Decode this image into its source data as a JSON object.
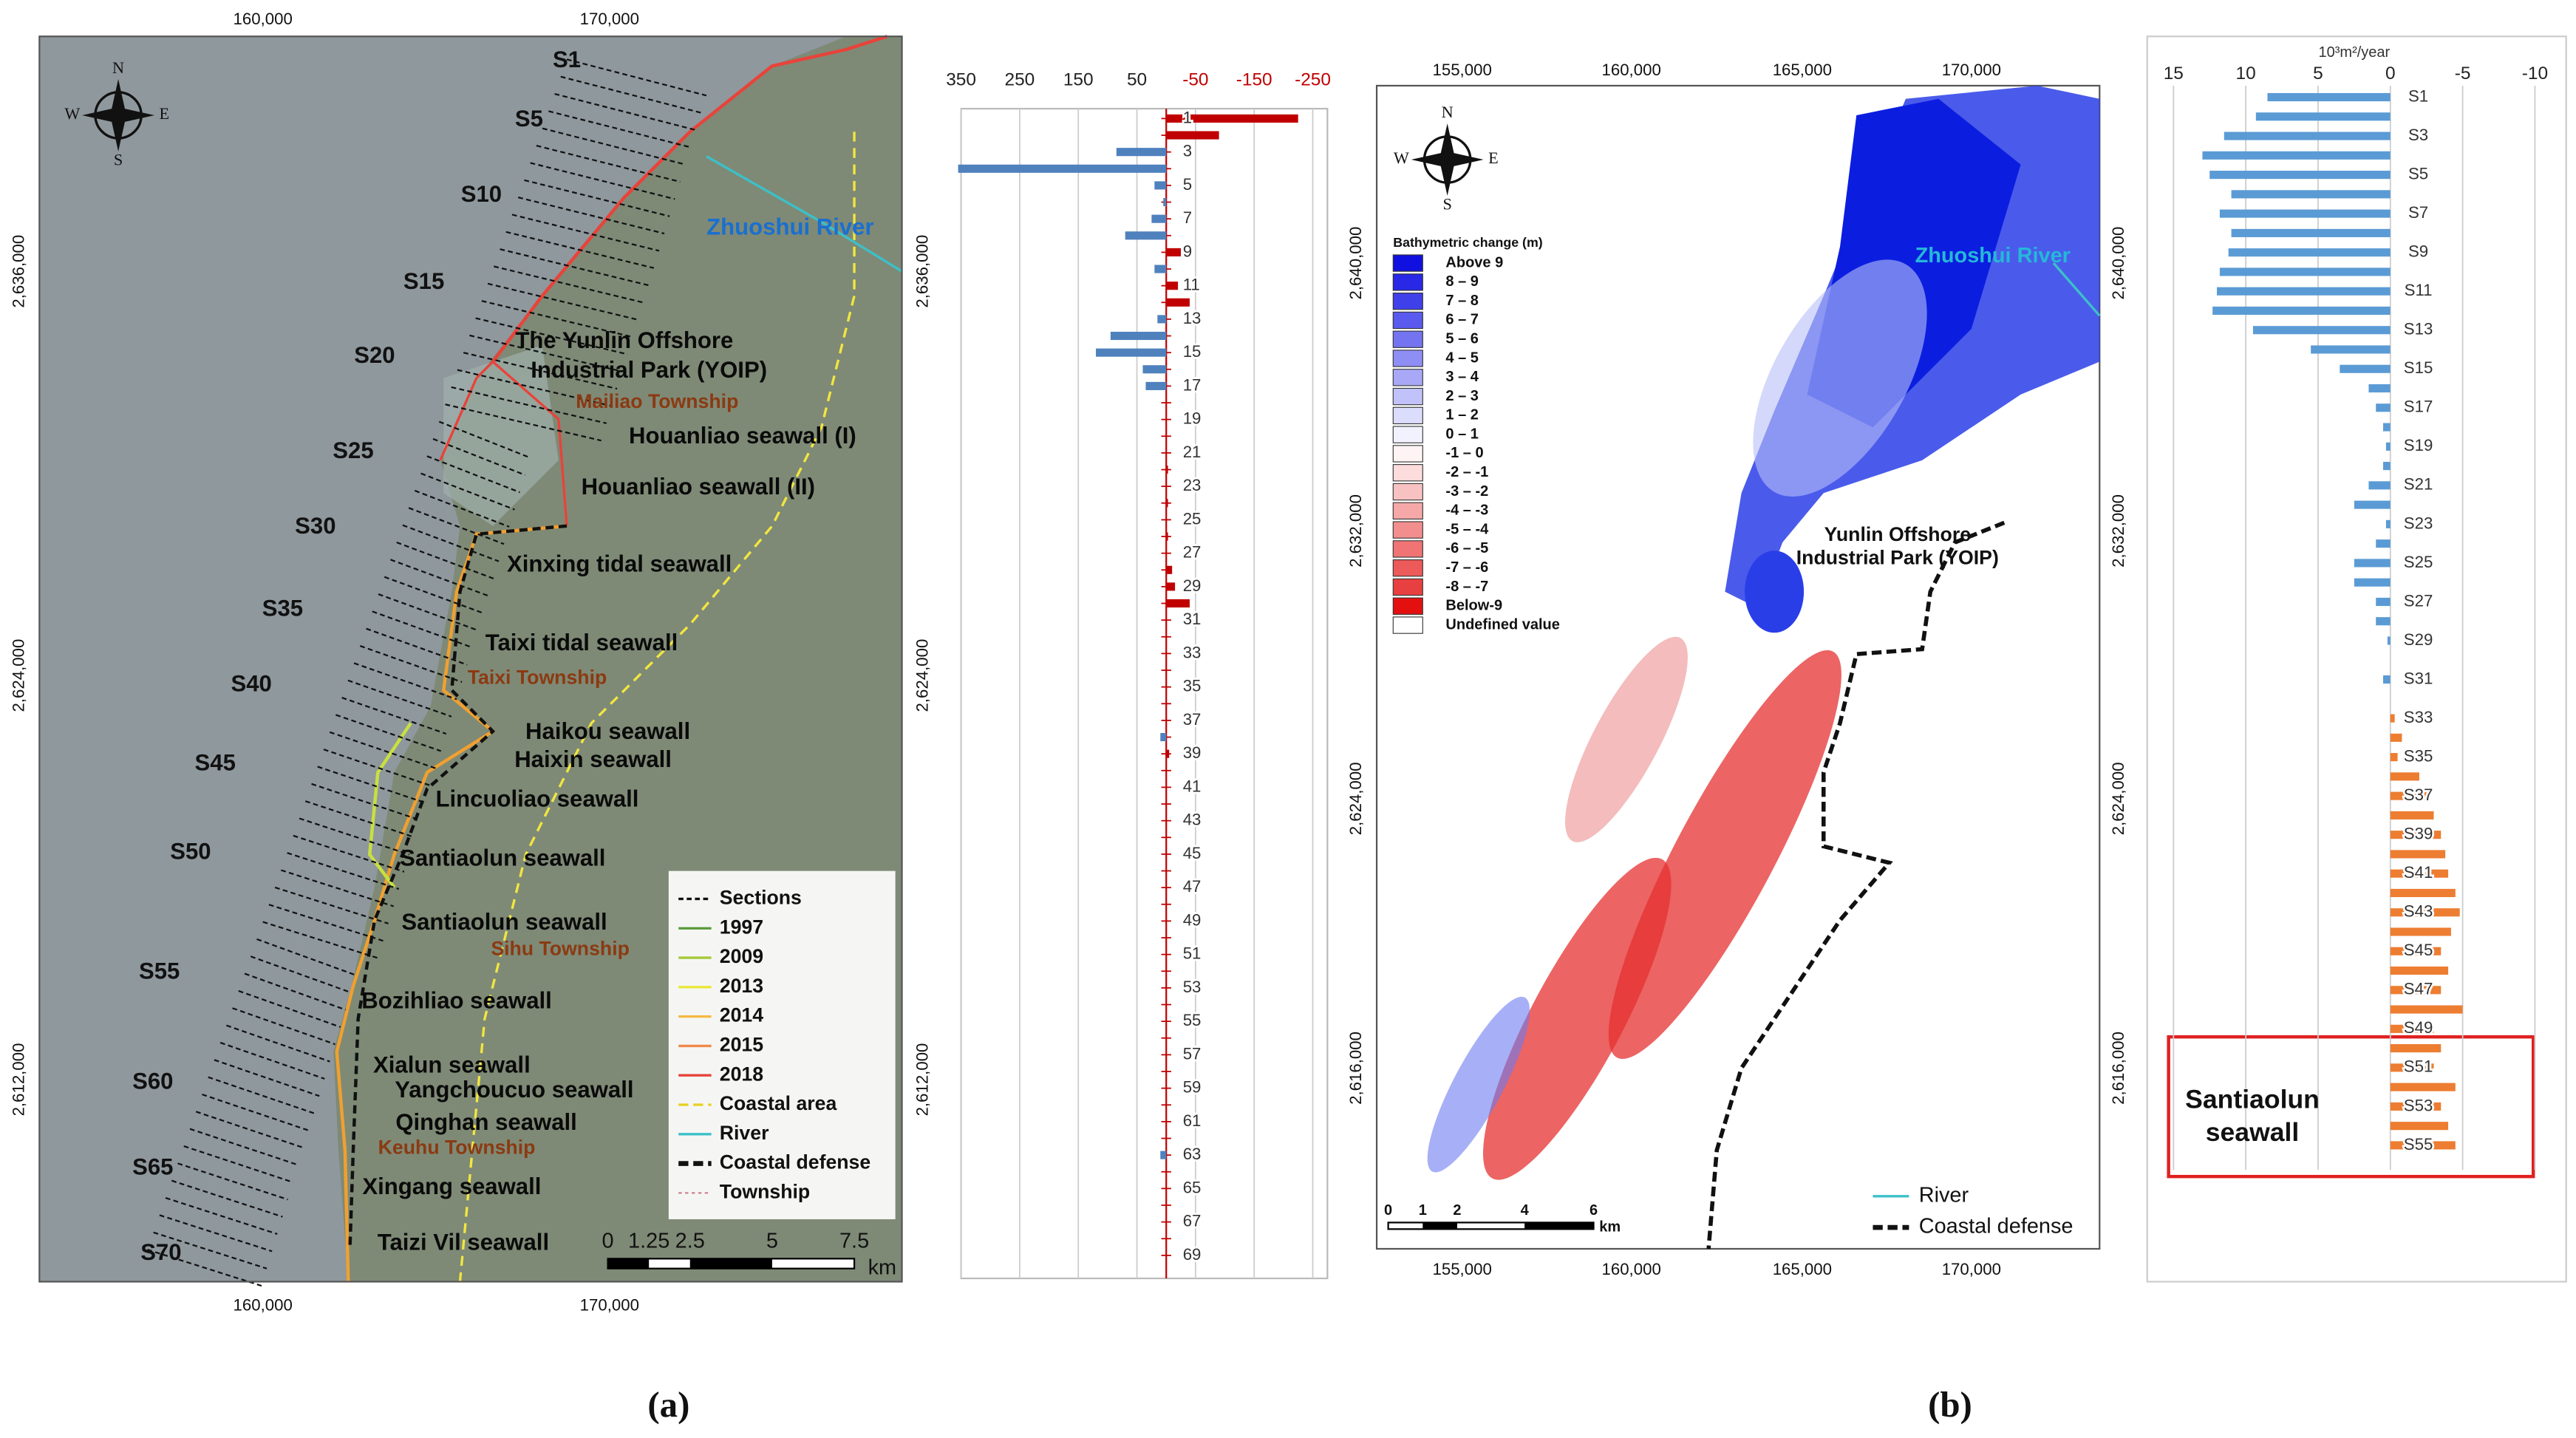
{
  "panel_a_map": {
    "sections": [
      "S1",
      "S5",
      "S10",
      "S15",
      "S20",
      "S25",
      "S30",
      "S35",
      "S40",
      "S45",
      "S50",
      "S55",
      "S60",
      "S65",
      "S70"
    ],
    "places": [
      "The Yunlin Offshore",
      "Industrial Park (YOIP)",
      "Houanliao seawall (I)",
      "Houanliao seawall (II)",
      "Xinxing tidal seawall",
      "Taixi tidal seawall",
      "Haikou seawall",
      "Haixin seawall",
      "Lincuoliao seawall",
      "Santiaolun seawall",
      "Santiaolun seawall",
      "Bozihliao seawall",
      "Xialun seawall",
      "Yangchoucuo seawall",
      "Qinghan seawall",
      "Xingang seawall",
      "Taizi Vil seawall"
    ],
    "townships": [
      "Mailiao Township",
      "Taixi Township",
      "Sihu Township",
      "Keuhu Township"
    ],
    "river": "Zhuoshui River",
    "legend": [
      "Sections",
      "1997",
      "2009",
      "2013",
      "2014",
      "2015",
      "2018",
      "Coastal area",
      "River",
      "Coastal defense",
      "Township"
    ],
    "scale": [
      "0",
      "1.25",
      "2.5",
      "5",
      "7.5",
      "km"
    ],
    "x_ticks": [
      "160,000",
      "170,000"
    ],
    "y_ticks": [
      "2,636,000",
      "2,624,000",
      "2,612,000"
    ],
    "compass": [
      "N",
      "E",
      "S",
      "W"
    ]
  },
  "panel_b_map": {
    "legend_title": "Bathymetric change (m)",
    "legend": [
      "Above 9",
      "8 – 9",
      "7 – 8",
      "6 – 7",
      "5 – 6",
      "4 – 5",
      "3 – 4",
      "2 – 3",
      "1 – 2",
      "0 – 1",
      "-1 – 0",
      "-2 – -1",
      "-3 – -2",
      "-4 – -3",
      "-5 – -4",
      "-6 – -5",
      "-7 – -6",
      "-8 – -7",
      "Below-9",
      "Undefined value"
    ],
    "river": "Zhuoshui River",
    "park": [
      "Yunlin Offshore",
      "Industrial Park (YOIP)"
    ],
    "line_legend": [
      "River",
      "Coastal defense"
    ],
    "scale": [
      "0",
      "1",
      "2",
      "4",
      "6",
      "km"
    ],
    "x_ticks": [
      "155,000",
      "160,000",
      "165,000",
      "170,000"
    ],
    "y_ticks": [
      "2,640,000",
      "2,632,000",
      "2,624,000",
      "2,616,000"
    ],
    "compass": [
      "N",
      "E",
      "S",
      "W"
    ]
  },
  "chart_data": [
    {
      "type": "bar",
      "orientation": "horizontal",
      "categories": [
        1,
        null,
        3,
        null,
        5,
        null,
        7,
        null,
        9,
        null,
        11,
        null,
        13,
        null,
        15,
        null,
        17,
        null,
        19,
        null,
        21,
        null,
        23,
        null,
        25,
        null,
        27,
        null,
        29,
        null,
        31,
        null,
        33,
        null,
        35,
        null,
        37,
        null,
        39,
        null,
        41,
        null,
        43,
        null,
        45,
        null,
        47,
        null,
        49,
        null,
        51,
        null,
        53,
        null,
        55,
        null,
        57,
        null,
        59,
        null,
        61,
        null,
        63,
        null,
        65,
        null,
        67,
        null,
        69
      ],
      "values": [
        -225,
        -90,
        85,
        355,
        20,
        5,
        25,
        70,
        -25,
        20,
        -20,
        -40,
        15,
        95,
        120,
        40,
        35,
        0,
        0,
        0,
        0,
        -3,
        0,
        -3,
        0,
        -3,
        0,
        -10,
        -15,
        -40,
        0,
        0,
        0,
        0,
        0,
        0,
        0,
        10,
        -5,
        0,
        0,
        0,
        0,
        0,
        0,
        0,
        0,
        0,
        0,
        0,
        0,
        0,
        0,
        0,
        0,
        0,
        0,
        0,
        0,
        0,
        0,
        0,
        10,
        0,
        0,
        0,
        0,
        0,
        0
      ],
      "xlim": [
        350,
        -275
      ],
      "xticks": [
        350,
        250,
        150,
        50,
        -50,
        -150,
        -250
      ],
      "positive_color": "#4f81bd",
      "negative_color": "#c00000",
      "grid": true
    },
    {
      "type": "bar",
      "orientation": "horizontal",
      "unit_label": "10³m²/year",
      "categories": [
        "S1",
        null,
        "S3",
        null,
        "S5",
        null,
        "S7",
        null,
        "S9",
        null,
        "S11",
        null,
        "S13",
        null,
        "S15",
        null,
        "S17",
        null,
        "S19",
        null,
        "S21",
        null,
        "S23",
        null,
        "S25",
        null,
        "S27",
        null,
        "S29",
        null,
        "S31",
        null,
        "S33",
        null,
        "S35",
        null,
        "S37",
        null,
        "S39",
        null,
        "S41",
        null,
        "S43",
        null,
        "S45",
        null,
        "S47",
        null,
        "S49",
        null,
        "S51",
        null,
        "S53",
        null,
        "S55"
      ],
      "values": [
        8.5,
        9.3,
        11.5,
        13,
        12.5,
        11,
        11.8,
        11,
        11.2,
        11.8,
        12,
        12.3,
        9.5,
        5.5,
        3.5,
        1.5,
        1,
        0.5,
        0.3,
        0.5,
        1.5,
        2.5,
        0.3,
        1,
        2.5,
        2.5,
        1,
        1,
        0.2,
        0,
        0.5,
        0,
        -0.3,
        -0.8,
        -0.5,
        -2,
        -2.5,
        -3,
        -3.5,
        -3.8,
        -4,
        -4.5,
        -4.8,
        -4.2,
        -3.5,
        -4,
        -3.5,
        -5,
        -3,
        -3.5,
        -3,
        -4.5,
        -3.5,
        -4,
        -4.5
      ],
      "xlim": [
        15.5,
        -10.5
      ],
      "xticks": [
        15,
        10,
        5,
        0,
        -5,
        -10
      ],
      "positive_color": "#5b9bd5",
      "negative_color": "#ed7d31",
      "grid": true,
      "annotation": [
        "Santiaolun",
        "seawall"
      ]
    }
  ],
  "captions": [
    "(a)",
    "(b)"
  ]
}
